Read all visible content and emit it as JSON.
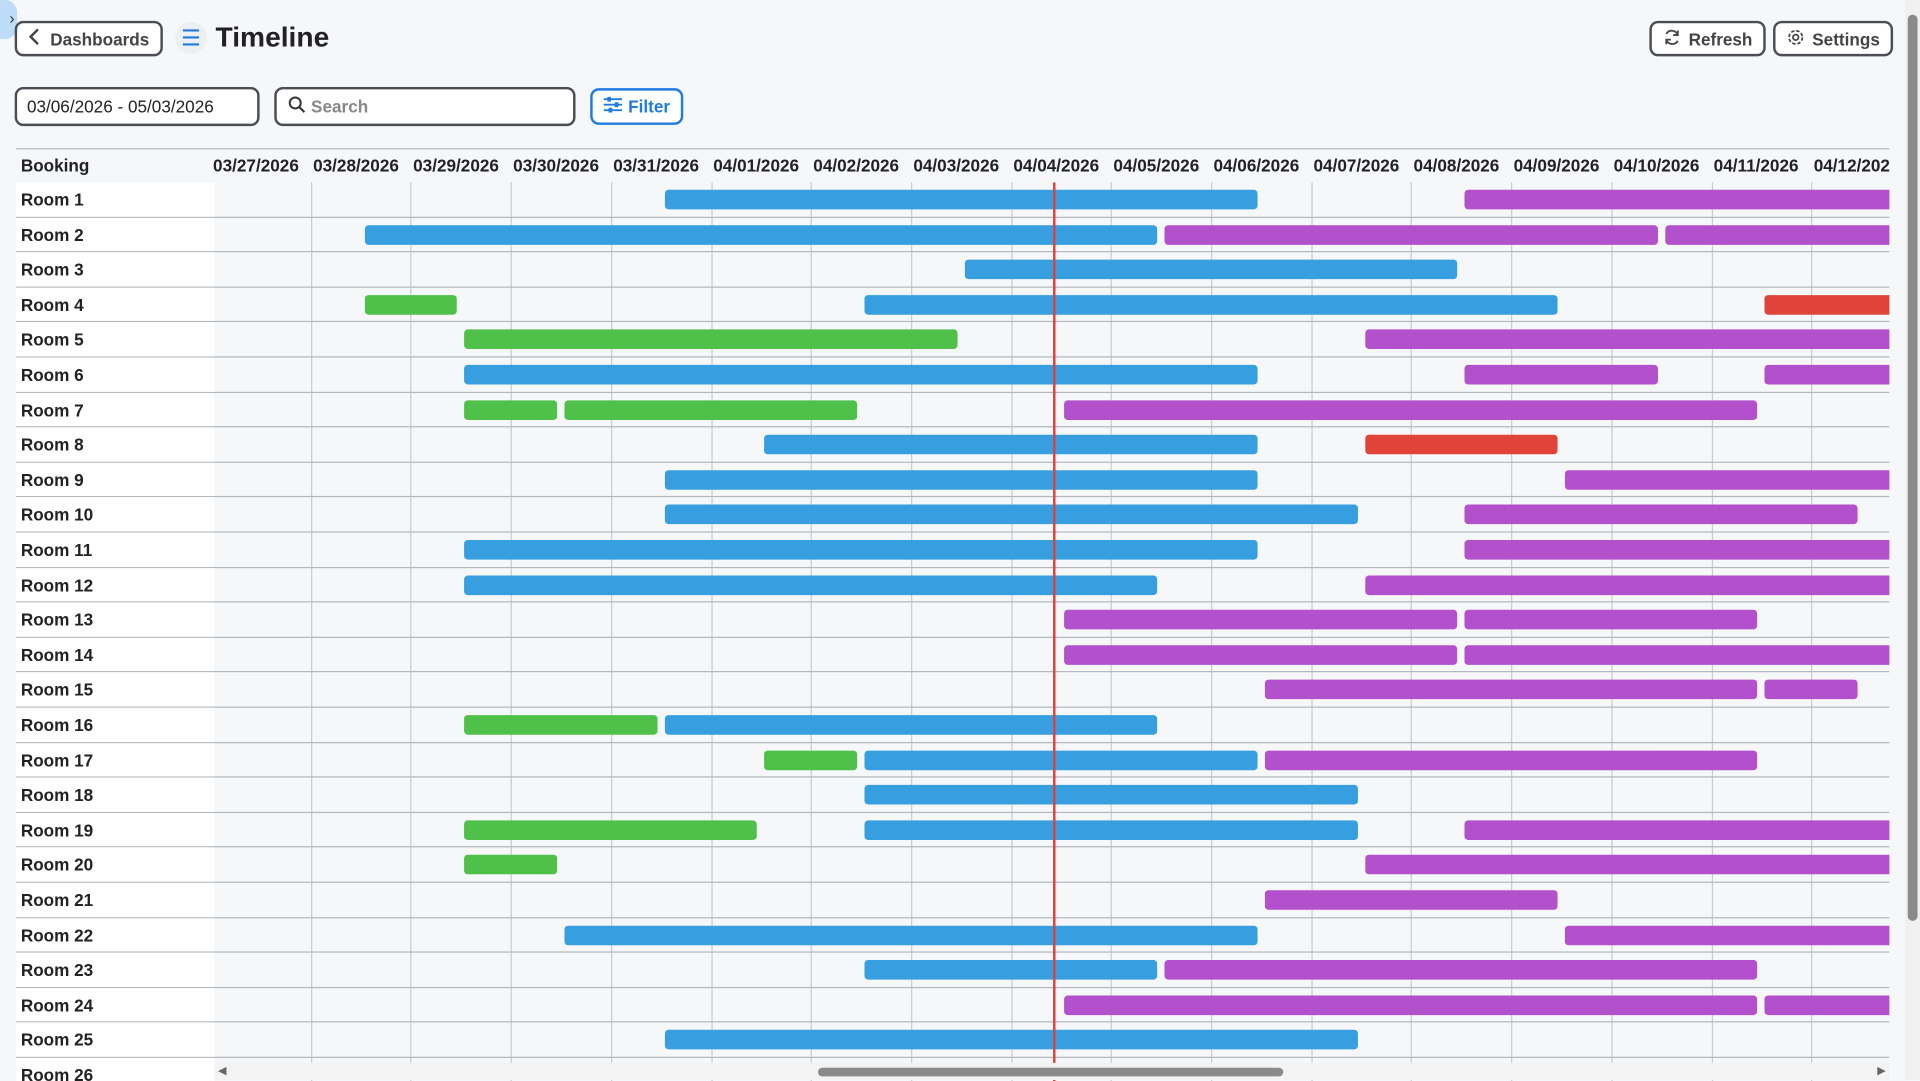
{
  "header": {
    "back_label": "Dashboards",
    "title": "Timeline",
    "refresh_label": "Refresh",
    "settings_label": "Settings"
  },
  "toolbar": {
    "date_range": "03/06/2026 - 05/03/2026",
    "search_placeholder": "Search",
    "filter_label": "Filter"
  },
  "timeline": {
    "first_column_header": "Booking",
    "dates": [
      "03/27/2026",
      "03/28/2026",
      "03/29/2026",
      "03/30/2026",
      "03/31/2026",
      "04/01/2026",
      "04/02/2026",
      "04/03/2026",
      "04/04/2026",
      "04/05/2026",
      "04/06/2026",
      "04/07/2026",
      "04/08/2026",
      "04/09/2026",
      "04/10/2026",
      "04/11/2026",
      "04/12/2026"
    ],
    "now_marker": "04/04/2026 10:00",
    "colors": {
      "blue": "#379fe0",
      "green": "#4fc04a",
      "purple": "#b350cc",
      "red": "#e0433a"
    },
    "rows": [
      {
        "label": "Room 1",
        "bars": [
          {
            "start": "03/31/2026",
            "end": "04/06/2026",
            "color": "blue"
          },
          {
            "start": "04/08/2026",
            "end": "04/14/2026",
            "color": "purple"
          }
        ]
      },
      {
        "label": "Room 2",
        "bars": [
          {
            "start": "03/28/2026",
            "end": "04/05/2026",
            "color": "blue"
          },
          {
            "start": "04/05/2026",
            "end": "04/10/2026",
            "color": "purple"
          },
          {
            "start": "04/10/2026",
            "end": "04/14/2026",
            "color": "purple"
          }
        ]
      },
      {
        "label": "Room 3",
        "bars": [
          {
            "start": "04/03/2026",
            "end": "04/08/2026",
            "color": "blue"
          }
        ]
      },
      {
        "label": "Room 4",
        "bars": [
          {
            "start": "03/28/2026",
            "end": "03/29/2026",
            "color": "green"
          },
          {
            "start": "04/02/2026",
            "end": "04/09/2026",
            "color": "blue"
          },
          {
            "start": "04/11/2026",
            "end": "04/14/2026",
            "color": "red"
          }
        ]
      },
      {
        "label": "Room 5",
        "bars": [
          {
            "start": "03/29/2026",
            "end": "04/03/2026",
            "color": "green"
          },
          {
            "start": "04/07/2026",
            "end": "04/14/2026",
            "color": "purple"
          }
        ]
      },
      {
        "label": "Room 6",
        "bars": [
          {
            "start": "03/29/2026",
            "end": "04/06/2026",
            "color": "blue"
          },
          {
            "start": "04/08/2026",
            "end": "04/10/2026",
            "color": "purple"
          },
          {
            "start": "04/11/2026",
            "end": "04/14/2026",
            "color": "purple"
          }
        ]
      },
      {
        "label": "Room 7",
        "bars": [
          {
            "start": "03/29/2026",
            "end": "03/30/2026",
            "color": "green"
          },
          {
            "start": "03/30/2026",
            "end": "04/02/2026",
            "color": "green"
          },
          {
            "start": "04/04/2026",
            "end": "04/11/2026",
            "color": "purple"
          }
        ]
      },
      {
        "label": "Room 8",
        "bars": [
          {
            "start": "04/01/2026",
            "end": "04/06/2026",
            "color": "blue"
          },
          {
            "start": "04/07/2026",
            "end": "04/09/2026",
            "color": "red"
          }
        ]
      },
      {
        "label": "Room 9",
        "bars": [
          {
            "start": "03/31/2026",
            "end": "04/06/2026",
            "color": "blue"
          },
          {
            "start": "04/09/2026",
            "end": "04/14/2026",
            "color": "purple"
          }
        ]
      },
      {
        "label": "Room 10",
        "bars": [
          {
            "start": "03/31/2026",
            "end": "04/07/2026",
            "color": "blue"
          },
          {
            "start": "04/08/2026",
            "end": "04/12/2026",
            "color": "purple"
          }
        ]
      },
      {
        "label": "Room 11",
        "bars": [
          {
            "start": "03/29/2026",
            "end": "04/06/2026",
            "color": "blue"
          },
          {
            "start": "04/08/2026",
            "end": "04/14/2026",
            "color": "purple"
          }
        ]
      },
      {
        "label": "Room 12",
        "bars": [
          {
            "start": "03/29/2026",
            "end": "04/05/2026",
            "color": "blue"
          },
          {
            "start": "04/07/2026",
            "end": "04/14/2026",
            "color": "purple"
          }
        ]
      },
      {
        "label": "Room 13",
        "bars": [
          {
            "start": "04/04/2026",
            "end": "04/08/2026",
            "color": "purple"
          },
          {
            "start": "04/08/2026",
            "end": "04/11/2026",
            "color": "purple"
          }
        ]
      },
      {
        "label": "Room 14",
        "bars": [
          {
            "start": "04/04/2026",
            "end": "04/08/2026",
            "color": "purple"
          },
          {
            "start": "04/08/2026",
            "end": "04/14/2026",
            "color": "purple"
          }
        ]
      },
      {
        "label": "Room 15",
        "bars": [
          {
            "start": "04/06/2026",
            "end": "04/11/2026",
            "color": "purple"
          },
          {
            "start": "04/11/2026",
            "end": "04/12/2026",
            "color": "purple"
          }
        ]
      },
      {
        "label": "Room 16",
        "bars": [
          {
            "start": "03/29/2026",
            "end": "03/31/2026",
            "color": "green"
          },
          {
            "start": "03/31/2026",
            "end": "04/05/2026",
            "color": "blue"
          }
        ]
      },
      {
        "label": "Room 17",
        "bars": [
          {
            "start": "04/01/2026",
            "end": "04/02/2026",
            "color": "green"
          },
          {
            "start": "04/02/2026",
            "end": "04/06/2026",
            "color": "blue"
          },
          {
            "start": "04/06/2026",
            "end": "04/11/2026",
            "color": "purple"
          }
        ]
      },
      {
        "label": "Room 18",
        "bars": [
          {
            "start": "04/02/2026",
            "end": "04/07/2026",
            "color": "blue"
          }
        ]
      },
      {
        "label": "Room 19",
        "bars": [
          {
            "start": "03/29/2026",
            "end": "04/01/2026",
            "color": "green"
          },
          {
            "start": "04/02/2026",
            "end": "04/07/2026",
            "color": "blue"
          },
          {
            "start": "04/08/2026",
            "end": "04/14/2026",
            "color": "purple"
          }
        ]
      },
      {
        "label": "Room 20",
        "bars": [
          {
            "start": "03/29/2026",
            "end": "03/30/2026",
            "color": "green"
          },
          {
            "start": "04/07/2026",
            "end": "04/14/2026",
            "color": "purple"
          }
        ]
      },
      {
        "label": "Room 21",
        "bars": [
          {
            "start": "04/06/2026",
            "end": "04/09/2026",
            "color": "purple"
          }
        ]
      },
      {
        "label": "Room 22",
        "bars": [
          {
            "start": "03/30/2026",
            "end": "04/06/2026",
            "color": "blue"
          },
          {
            "start": "04/09/2026",
            "end": "04/14/2026",
            "color": "purple"
          }
        ]
      },
      {
        "label": "Room 23",
        "bars": [
          {
            "start": "04/02/2026",
            "end": "04/05/2026",
            "color": "blue"
          },
          {
            "start": "04/05/2026",
            "end": "04/11/2026",
            "color": "purple"
          }
        ]
      },
      {
        "label": "Room 24",
        "bars": [
          {
            "start": "04/04/2026",
            "end": "04/11/2026",
            "color": "purple"
          },
          {
            "start": "04/11/2026",
            "end": "04/14/2026",
            "color": "purple"
          }
        ]
      },
      {
        "label": "Room 25",
        "bars": [
          {
            "start": "03/31/2026",
            "end": "04/07/2026",
            "color": "blue"
          }
        ]
      },
      {
        "label": "Room 26",
        "bars": []
      }
    ]
  }
}
